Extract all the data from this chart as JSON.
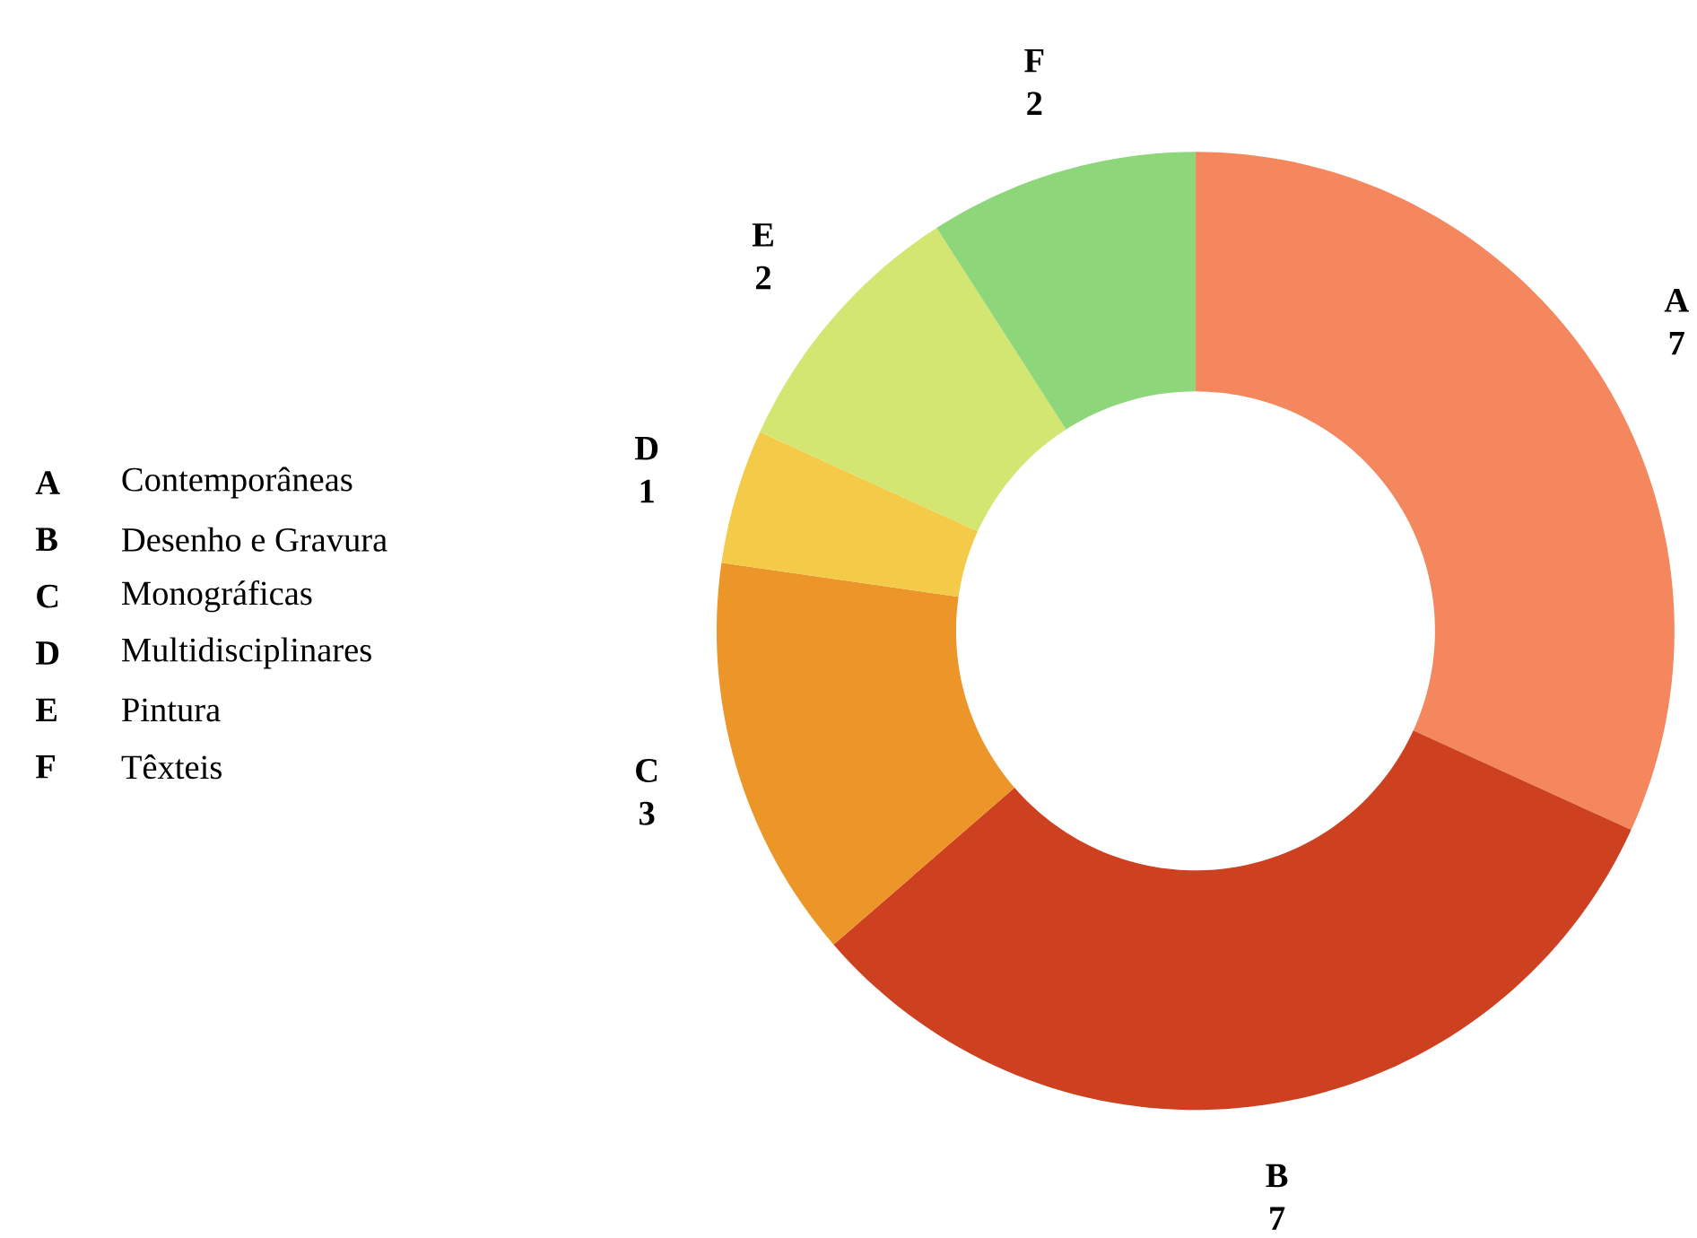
{
  "chart_data": {
    "type": "donut",
    "categories": [
      "A",
      "B",
      "C",
      "D",
      "E",
      "F"
    ],
    "values": [
      7,
      7,
      3,
      1,
      2,
      2
    ],
    "colors": [
      "#f4875e",
      "#cd4020",
      "#ec9629",
      "#f4cb48",
      "#d4e672",
      "#8dd67a"
    ],
    "data_labels": true,
    "annotations": [
      "Contemporâneas",
      "Desenho e Gravura",
      "Monográficas",
      "Multidisciplinares",
      "Pintura",
      "Têxteis"
    ]
  }
}
